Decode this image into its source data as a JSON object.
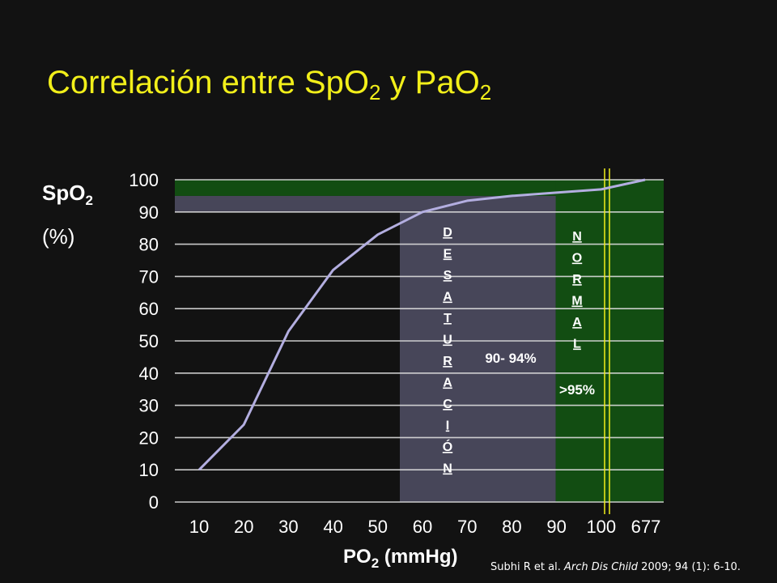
{
  "title": {
    "prefix": "Correlación entre SpO",
    "sub1": "2",
    "middle": " y PaO",
    "sub2": "2"
  },
  "citation": {
    "authors": "Subhi R et al. ",
    "journal": "Arch Dis Child",
    "rest": " 2009; 94 (1): 6-10."
  },
  "colors": {
    "title": "#f2ef1a",
    "curve": "#b3aee0",
    "desat_band": "#474659",
    "normal_band": "#124d12",
    "marker": "#f2ef1a",
    "gridline": "#dddddd"
  },
  "chart_data": {
    "type": "line",
    "title": "Correlación entre SpO2 y PaO2",
    "ylabel_main": "SpO",
    "ylabel_sub": "2",
    "ylabel_unit": "(%)",
    "xlabel_main": "PO",
    "xlabel_sub": "2",
    "xlabel_unit": " (mmHg)",
    "x_ticks": [
      "10",
      "20",
      "30",
      "40",
      "50",
      "60",
      "70",
      "80",
      "90",
      "100",
      "677"
    ],
    "y_ticks": [
      "0",
      "10",
      "20",
      "30",
      "40",
      "50",
      "60",
      "70",
      "80",
      "90",
      "100"
    ],
    "ylim": [
      0,
      100
    ],
    "grid": true,
    "x": [
      "10",
      "20",
      "30",
      "40",
      "50",
      "60",
      "70",
      "80",
      "90",
      "100",
      "677"
    ],
    "values": [
      10,
      24,
      53,
      72,
      83,
      90,
      93.5,
      95,
      96,
      97,
      100
    ],
    "bands": [
      {
        "label": "DESATURACIÓN",
        "range_label": "90- 94%",
        "y_range": [
          90,
          95
        ],
        "x_range": [
          60,
          90
        ]
      },
      {
        "label": "NORMAL",
        "range_label": ">95%",
        "y_range": [
          95,
          100
        ],
        "x_range": [
          90,
          677
        ]
      }
    ]
  }
}
